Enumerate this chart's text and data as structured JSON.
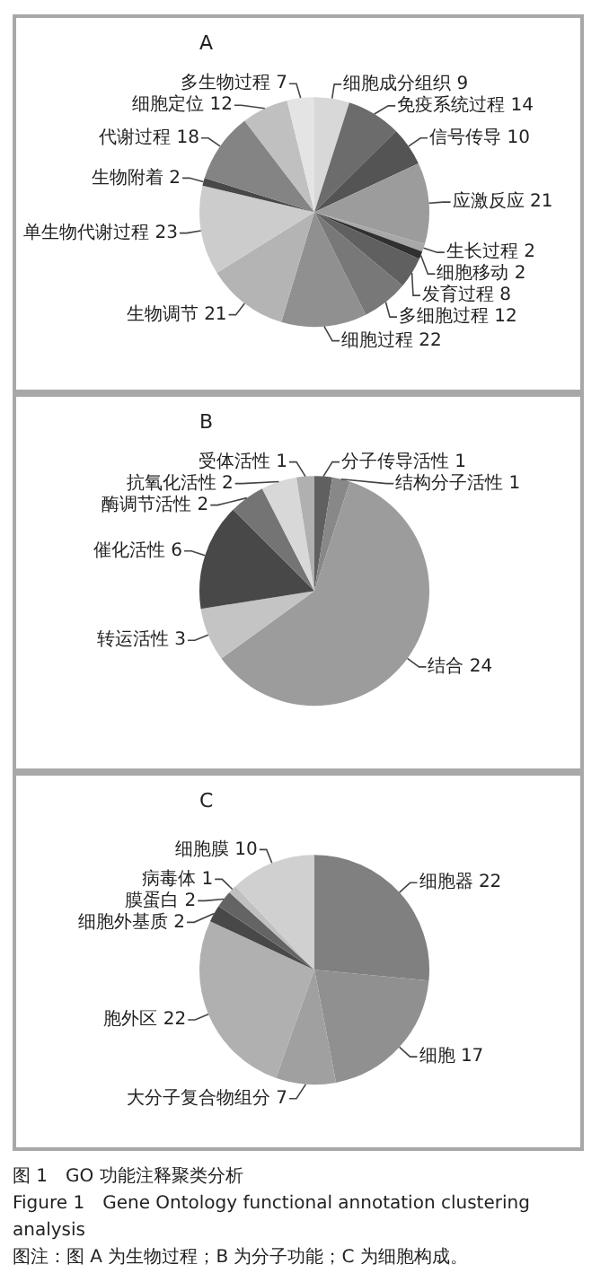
{
  "chart_data": [
    {
      "type": "pie",
      "title": "A",
      "categories": [
        "细胞成分组织 9",
        "免疫系统过程 14",
        "信号传导 10",
        "应激反应 21",
        "生长过程 2",
        "细胞移动 2",
        "发育过程 8",
        "多细胞过程 12",
        "细胞过程 22",
        "生物调节 21",
        "单生物代谢过程 23",
        "生物附着 2",
        "代谢过程 18",
        "细胞定位 12",
        "多生物过程 7"
      ],
      "values": [
        9,
        14,
        10,
        21,
        2,
        2,
        8,
        12,
        22,
        21,
        23,
        2,
        18,
        12,
        7
      ],
      "colors": [
        "#d8d8d8",
        "#6c6c6c",
        "#545454",
        "#9c9c9c",
        "#a8a8a8",
        "#303030",
        "#606060",
        "#787878",
        "#909090",
        "#b4b4b4",
        "#cccccc",
        "#484848",
        "#848484",
        "#c0c0c0",
        "#e4e4e4"
      ]
    },
    {
      "type": "pie",
      "title": "B",
      "categories": [
        "分子传导活性 1",
        "结构分子活性 1",
        "结合 24",
        "转运活性 3",
        "催化活性 6",
        "酶调节活性 2",
        "抗氧化活性 2",
        "受体活性 1"
      ],
      "values": [
        1,
        1,
        24,
        3,
        6,
        2,
        2,
        1
      ],
      "colors": [
        "#606060",
        "#888888",
        "#9c9c9c",
        "#c4c4c4",
        "#484848",
        "#747474",
        "#d8d8d8",
        "#b0b0b0"
      ]
    },
    {
      "type": "pie",
      "title": "C",
      "categories": [
        "细胞器 22",
        "细胞 17",
        "大分子复合物组分 7",
        "胞外区 22",
        "细胞外基质 2",
        "膜蛋白 2",
        "病毒体 1",
        "细胞膜 10"
      ],
      "values": [
        22,
        17,
        7,
        22,
        2,
        2,
        1,
        10
      ],
      "colors": [
        "#808080",
        "#909090",
        "#a0a0a0",
        "#b0b0b0",
        "#484848",
        "#646464",
        "#c0c0c0",
        "#d0d0d0"
      ],
      "annotations": [
        "图 1　GO 功能注释聚类分析",
        "Figure 1　Gene Ontology functional annotation clustering analysis",
        "图注：图 A 为生物过程；B 为分子功能；C 为细胞构成。"
      ]
    }
  ]
}
